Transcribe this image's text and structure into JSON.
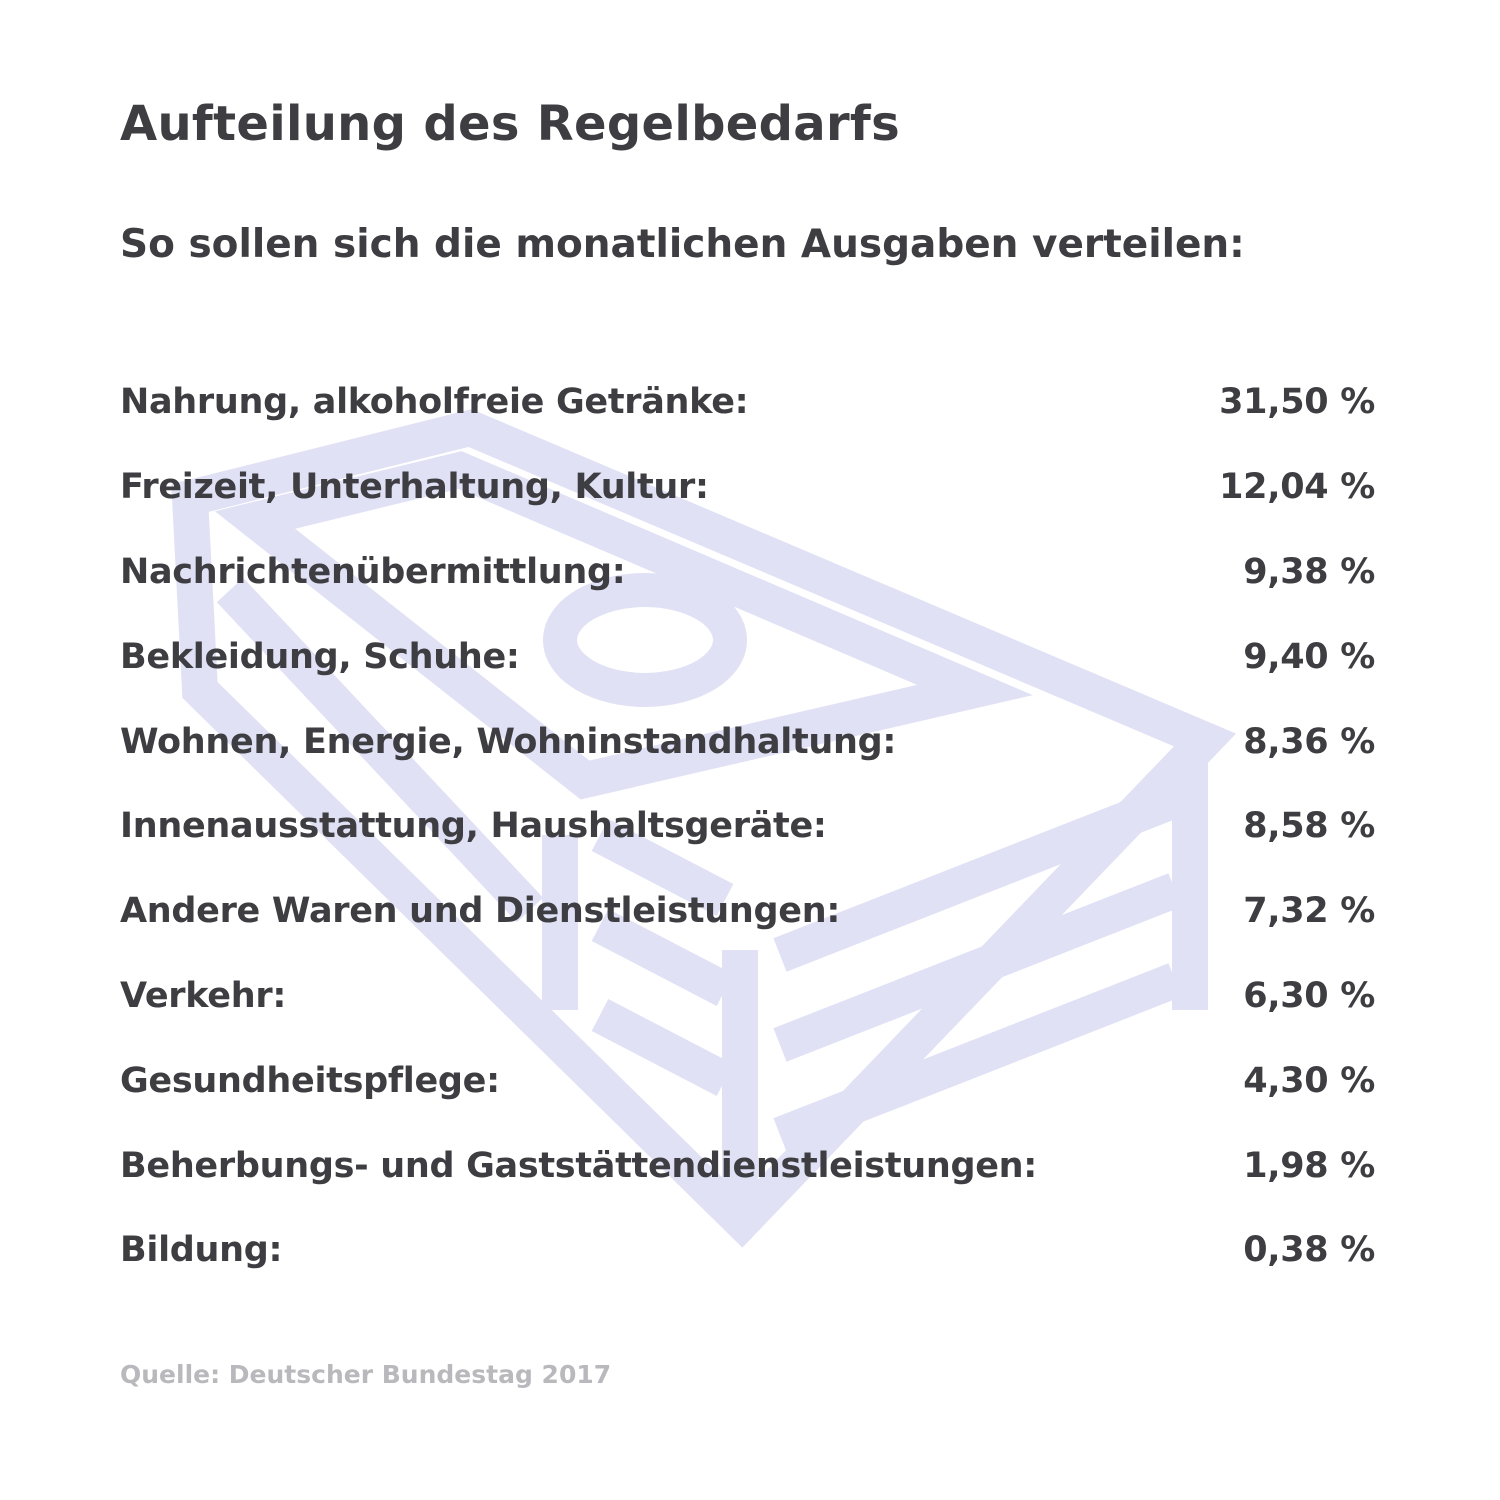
{
  "title": "Aufteilung des Regelbedarfs",
  "subtitle": "So sollen sich die monatlichen Ausgaben verteilen:",
  "rows": [
    {
      "label": "Nahrung, alkoholfreie Getränke:",
      "value": "31,50 %"
    },
    {
      "label": "Freizeit, Unterhaltung, Kultur:",
      "value": "12,04 %"
    },
    {
      "label": "Nachrichtenübermittlung:",
      "value": "9,38 %"
    },
    {
      "label": "Bekleidung, Schuhe:",
      "value": "9,40 %"
    },
    {
      "label": "Wohnen, Energie, Wohninstandhaltung:",
      "value": "8,36 %"
    },
    {
      "label": "Innenausstattung, Haushaltsgeräte:",
      "value": "8,58 %"
    },
    {
      "label": "Andere Waren und Dienstleistungen:",
      "value": "7,32 %"
    },
    {
      "label": "Verkehr:",
      "value": "6,30 %"
    },
    {
      "label": "Gesundheitspflege:",
      "value": "4,30 %"
    },
    {
      "label": "Beherbungs- und Gaststättendienstleistungen:",
      "value": "1,98 %"
    },
    {
      "label": "Bildung:",
      "value": "0,38 %"
    }
  ],
  "source": "Quelle: Deutscher Bundestag 2017",
  "illustration": {
    "icon": "money-stack-icon",
    "color": "#e0e1f5"
  },
  "colors": {
    "text": "#3d3d42",
    "source_text": "#b9b9bd",
    "background": "#ffffff"
  }
}
